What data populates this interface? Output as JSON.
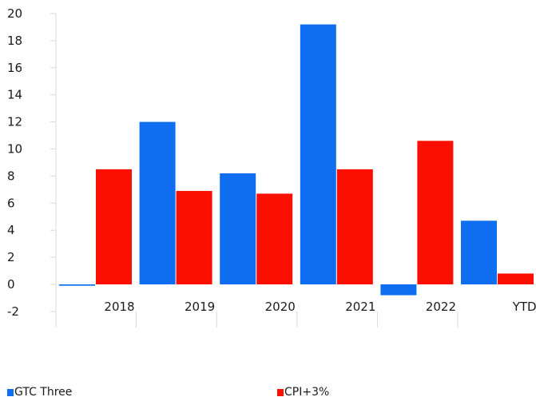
{
  "chart_data": {
    "type": "bar",
    "categories": [
      "2018",
      "2019",
      "2020",
      "2021",
      "2022",
      "YTD"
    ],
    "series": [
      {
        "name": "GTC Three",
        "color": "#0f6ef0",
        "values": [
          -0.1,
          12.0,
          8.2,
          19.2,
          -0.8,
          4.7
        ]
      },
      {
        "name": "CPI+3%",
        "color": "#fb0f00",
        "values": [
          8.5,
          6.9,
          6.7,
          8.5,
          10.6,
          0.8
        ]
      }
    ],
    "yticks": [
      "20",
      "18",
      "16",
      "14",
      "12",
      "10",
      "8",
      "6",
      "4",
      "2",
      "0",
      "-2"
    ],
    "ylim": [
      -2,
      20
    ],
    "title": "",
    "xlabel": "",
    "ylabel": "",
    "grid": false,
    "legend_position": "bottom"
  }
}
